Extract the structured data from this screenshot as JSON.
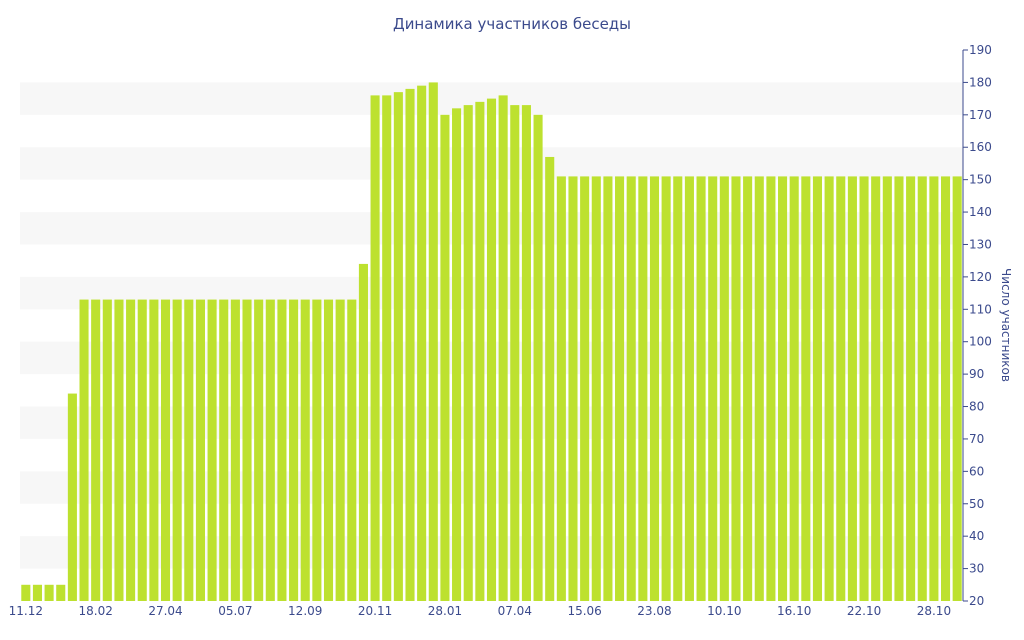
{
  "chart_data": {
    "type": "bar",
    "title": "Динамика участников беседы",
    "ylabel": "Число участников",
    "xlabel": "",
    "ylim": [
      20,
      190
    ],
    "yticks": [
      20,
      30,
      40,
      50,
      60,
      70,
      80,
      90,
      100,
      110,
      120,
      130,
      140,
      150,
      160,
      170,
      180,
      190
    ],
    "y_axis_side": "right",
    "grid": "alternating horizontal bands",
    "bar_color": "#bde12f",
    "band_color": "#f7f7f7",
    "text_color": "#3b4a8c",
    "x_tick_labels": [
      "11.12",
      "18.02",
      "27.04",
      "05.07",
      "12.09",
      "20.11",
      "28.01",
      "07.04",
      "15.06",
      "23.08",
      "10.10",
      "16.10",
      "22.10",
      "28.10"
    ],
    "x_tick_positions": [
      0,
      6,
      12,
      18,
      24,
      30,
      36,
      42,
      48,
      54,
      60,
      66,
      72,
      78
    ],
    "values": [
      25,
      25,
      25,
      25,
      84,
      113,
      113,
      113,
      113,
      113,
      113,
      113,
      113,
      113,
      113,
      113,
      113,
      113,
      113,
      113,
      113,
      113,
      113,
      113,
      113,
      113,
      113,
      113,
      113,
      124,
      176,
      176,
      177,
      178,
      179,
      180,
      170,
      172,
      173,
      174,
      175,
      176,
      173,
      173,
      170,
      157,
      151,
      151,
      151,
      151,
      151,
      151,
      151,
      151,
      151,
      151,
      151,
      151,
      151,
      151,
      151,
      151,
      151,
      151,
      151,
      151,
      151,
      151,
      151,
      151,
      151,
      151,
      151,
      151,
      151,
      151,
      151,
      151,
      151,
      151,
      151
    ]
  }
}
